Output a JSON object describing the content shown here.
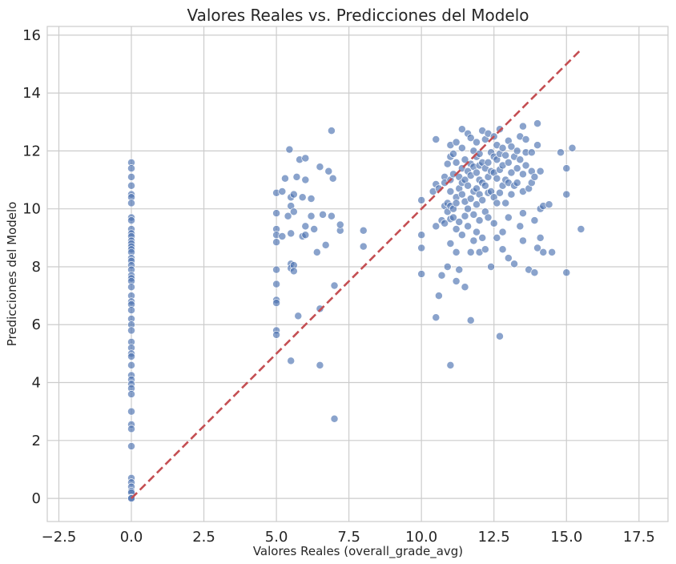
{
  "chart_data": {
    "type": "scatter",
    "title": "Valores Reales vs. Predicciones del Modelo",
    "xlabel": "Valores Reales (overall_grade_avg)",
    "ylabel": "Predicciones del Modelo",
    "xlim": [
      -2.9,
      18.5
    ],
    "ylim": [
      -0.8,
      16.3
    ],
    "xticks": [
      -2.5,
      0.0,
      2.5,
      5.0,
      7.5,
      10.0,
      12.5,
      15.0,
      17.5
    ],
    "xtick_labels": [
      "−2.5",
      "0.0",
      "2.5",
      "5.0",
      "7.5",
      "10.0",
      "12.5",
      "15.0",
      "17.5"
    ],
    "yticks": [
      0,
      2,
      4,
      6,
      8,
      10,
      12,
      14,
      16
    ],
    "ytick_labels": [
      "0",
      "2",
      "4",
      "6",
      "8",
      "10",
      "12",
      "14",
      "16"
    ],
    "grid": true,
    "point_color": "#4c72b0",
    "reference_line": {
      "x": [
        0,
        15.5
      ],
      "y": [
        0,
        15.5
      ],
      "color": "#c44e52",
      "style": "dashed"
    },
    "points": [
      [
        0,
        11.6
      ],
      [
        0,
        11.4
      ],
      [
        0,
        11.1
      ],
      [
        0,
        10.8
      ],
      [
        0,
        10.5
      ],
      [
        0,
        10.4
      ],
      [
        0,
        10.2
      ],
      [
        0,
        9.7
      ],
      [
        0,
        9.6
      ],
      [
        0,
        9.3
      ],
      [
        0,
        9.15
      ],
      [
        0,
        9.05
      ],
      [
        0,
        8.9
      ],
      [
        0,
        8.8
      ],
      [
        0,
        8.7
      ],
      [
        0,
        8.6
      ],
      [
        0,
        8.5
      ],
      [
        0,
        8.3
      ],
      [
        0,
        8.2
      ],
      [
        0,
        8.05
      ],
      [
        0,
        7.9
      ],
      [
        0,
        7.7
      ],
      [
        0,
        7.6
      ],
      [
        0,
        7.5
      ],
      [
        0,
        7.3
      ],
      [
        0,
        7.0
      ],
      [
        0,
        6.8
      ],
      [
        0,
        6.7
      ],
      [
        0,
        6.5
      ],
      [
        0,
        6.2
      ],
      [
        0,
        6.0
      ],
      [
        0,
        5.8
      ],
      [
        0,
        5.4
      ],
      [
        0,
        5.2
      ],
      [
        0,
        5.0
      ],
      [
        0,
        4.9
      ],
      [
        0,
        4.6
      ],
      [
        0,
        4.25
      ],
      [
        0,
        4.1
      ],
      [
        0,
        3.95
      ],
      [
        0,
        3.8
      ],
      [
        0,
        3.6
      ],
      [
        0,
        3.0
      ],
      [
        0,
        2.55
      ],
      [
        0,
        2.4
      ],
      [
        0,
        1.8
      ],
      [
        0,
        0.7
      ],
      [
        0,
        0.55
      ],
      [
        0,
        0.4
      ],
      [
        0,
        0.25
      ],
      [
        0,
        0.2
      ],
      [
        0,
        0.02
      ],
      [
        0,
        0.0
      ],
      [
        5.0,
        10.55
      ],
      [
        5.0,
        9.85
      ],
      [
        5.0,
        9.3
      ],
      [
        5.0,
        9.1
      ],
      [
        5.0,
        8.85
      ],
      [
        5.0,
        7.9
      ],
      [
        5.0,
        7.4
      ],
      [
        5.0,
        6.85
      ],
      [
        5.0,
        6.75
      ],
      [
        5.0,
        5.8
      ],
      [
        5.0,
        5.65
      ],
      [
        5.2,
        10.6
      ],
      [
        5.2,
        9.05
      ],
      [
        5.3,
        11.05
      ],
      [
        5.4,
        9.75
      ],
      [
        5.45,
        12.05
      ],
      [
        5.5,
        10.4
      ],
      [
        5.5,
        10.1
      ],
      [
        5.5,
        9.15
      ],
      [
        5.5,
        8.1
      ],
      [
        5.5,
        7.95
      ],
      [
        5.5,
        4.75
      ],
      [
        5.6,
        10.5
      ],
      [
        5.6,
        9.9
      ],
      [
        5.6,
        8.05
      ],
      [
        5.6,
        7.85
      ],
      [
        5.7,
        11.1
      ],
      [
        5.75,
        6.3
      ],
      [
        5.8,
        11.7
      ],
      [
        5.9,
        10.4
      ],
      [
        5.9,
        9.05
      ],
      [
        6.0,
        11.75
      ],
      [
        6.0,
        9.4
      ],
      [
        6.0,
        9.1
      ],
      [
        6.0,
        11.0
      ],
      [
        6.2,
        10.35
      ],
      [
        6.2,
        9.75
      ],
      [
        6.3,
        9.3
      ],
      [
        6.4,
        8.5
      ],
      [
        6.5,
        6.55
      ],
      [
        6.5,
        4.6
      ],
      [
        6.5,
        11.45
      ],
      [
        6.6,
        9.8
      ],
      [
        6.7,
        8.75
      ],
      [
        6.8,
        11.3
      ],
      [
        6.9,
        9.75
      ],
      [
        6.9,
        12.7
      ],
      [
        6.95,
        11.05
      ],
      [
        7.0,
        7.35
      ],
      [
        7.0,
        2.75
      ],
      [
        7.2,
        9.25
      ],
      [
        7.2,
        9.45
      ],
      [
        8.0,
        9.25
      ],
      [
        8.0,
        8.7
      ],
      [
        10.0,
        10.3
      ],
      [
        10.0,
        9.1
      ],
      [
        10.0,
        8.65
      ],
      [
        10.0,
        7.75
      ],
      [
        10.4,
        10.6
      ],
      [
        10.5,
        12.4
      ],
      [
        10.5,
        10.85
      ],
      [
        10.5,
        6.25
      ],
      [
        10.5,
        9.4
      ],
      [
        10.6,
        10.7
      ],
      [
        10.6,
        7.0
      ],
      [
        10.7,
        9.6
      ],
      [
        10.7,
        7.7
      ],
      [
        10.8,
        11.1
      ],
      [
        10.8,
        10.9
      ],
      [
        10.8,
        10.1
      ],
      [
        10.8,
        9.5
      ],
      [
        10.9,
        11.55
      ],
      [
        10.9,
        10.2
      ],
      [
        10.9,
        9.9
      ],
      [
        10.9,
        8.0
      ],
      [
        11.0,
        12.2
      ],
      [
        11.0,
        11.8
      ],
      [
        11.0,
        11.0
      ],
      [
        11.0,
        10.6
      ],
      [
        11.0,
        10.1
      ],
      [
        11.0,
        9.65
      ],
      [
        11.0,
        8.8
      ],
      [
        11.0,
        4.6
      ],
      [
        11.1,
        11.9
      ],
      [
        11.1,
        11.2
      ],
      [
        11.1,
        10.0
      ],
      [
        11.1,
        9.7
      ],
      [
        11.2,
        12.3
      ],
      [
        11.2,
        11.6
      ],
      [
        11.2,
        10.4
      ],
      [
        11.2,
        10.2
      ],
      [
        11.2,
        9.3
      ],
      [
        11.2,
        8.5
      ],
      [
        11.2,
        7.5
      ],
      [
        11.3,
        11.1
      ],
      [
        11.3,
        10.7
      ],
      [
        11.3,
        9.55
      ],
      [
        11.3,
        7.9
      ],
      [
        11.4,
        12.75
      ],
      [
        11.4,
        12.1
      ],
      [
        11.4,
        11.4
      ],
      [
        11.4,
        10.9
      ],
      [
        11.4,
        10.5
      ],
      [
        11.4,
        9.1
      ],
      [
        11.5,
        11.7
      ],
      [
        11.5,
        11.0
      ],
      [
        11.5,
        10.25
      ],
      [
        11.5,
        9.75
      ],
      [
        11.5,
        7.3
      ],
      [
        11.6,
        12.6
      ],
      [
        11.6,
        11.3
      ],
      [
        11.6,
        10.8
      ],
      [
        11.6,
        10.0
      ],
      [
        11.6,
        9.4
      ],
      [
        11.7,
        12.45
      ],
      [
        11.7,
        11.55
      ],
      [
        11.7,
        11.15
      ],
      [
        11.7,
        10.35
      ],
      [
        11.7,
        8.5
      ],
      [
        11.7,
        6.15
      ],
      [
        11.8,
        12.0
      ],
      [
        11.8,
        11.45
      ],
      [
        11.8,
        10.6
      ],
      [
        11.8,
        9.8
      ],
      [
        11.8,
        8.9
      ],
      [
        11.9,
        12.3
      ],
      [
        11.9,
        11.8
      ],
      [
        11.9,
        11.25
      ],
      [
        11.9,
        10.7
      ],
      [
        11.9,
        10.15
      ],
      [
        11.9,
        9.2
      ],
      [
        12.0,
        11.9
      ],
      [
        12.0,
        11.5
      ],
      [
        12.0,
        11.0
      ],
      [
        12.0,
        10.5
      ],
      [
        12.0,
        9.6
      ],
      [
        12.0,
        8.5
      ],
      [
        12.1,
        12.7
      ],
      [
        12.1,
        11.6
      ],
      [
        12.1,
        10.9
      ],
      [
        12.1,
        10.3
      ],
      [
        12.1,
        9.0
      ],
      [
        12.2,
        12.4
      ],
      [
        12.2,
        11.4
      ],
      [
        12.2,
        10.8
      ],
      [
        12.2,
        9.9
      ],
      [
        12.2,
        8.6
      ],
      [
        12.3,
        12.6
      ],
      [
        12.3,
        11.6
      ],
      [
        12.3,
        11.1
      ],
      [
        12.3,
        10.55
      ],
      [
        12.3,
        9.7
      ],
      [
        12.4,
        11.95
      ],
      [
        12.4,
        11.3
      ],
      [
        12.4,
        10.6
      ],
      [
        12.4,
        8.0
      ],
      [
        12.5,
        12.5
      ],
      [
        12.5,
        11.8
      ],
      [
        12.5,
        11.25
      ],
      [
        12.5,
        10.4
      ],
      [
        12.5,
        9.5
      ],
      [
        12.6,
        12.2
      ],
      [
        12.6,
        11.7
      ],
      [
        12.6,
        11.05
      ],
      [
        12.6,
        10.2
      ],
      [
        12.6,
        9.0
      ],
      [
        12.7,
        12.75
      ],
      [
        12.7,
        11.9
      ],
      [
        12.7,
        11.35
      ],
      [
        12.7,
        10.55
      ],
      [
        12.7,
        5.6
      ],
      [
        12.8,
        12.1
      ],
      [
        12.8,
        11.5
      ],
      [
        12.8,
        10.8
      ],
      [
        12.8,
        9.2
      ],
      [
        12.8,
        8.6
      ],
      [
        12.9,
        11.85
      ],
      [
        12.9,
        11.0
      ],
      [
        12.9,
        10.2
      ],
      [
        13.0,
        12.35
      ],
      [
        13.0,
        11.6
      ],
      [
        13.0,
        10.9
      ],
      [
        13.0,
        9.7
      ],
      [
        13.0,
        8.3
      ],
      [
        13.1,
        12.15
      ],
      [
        13.1,
        11.25
      ],
      [
        13.1,
        10.5
      ],
      [
        13.2,
        11.8
      ],
      [
        13.2,
        10.8
      ],
      [
        13.2,
        8.1
      ],
      [
        13.3,
        12.0
      ],
      [
        13.3,
        11.4
      ],
      [
        13.3,
        10.9
      ],
      [
        13.4,
        12.5
      ],
      [
        13.4,
        11.7
      ],
      [
        13.4,
        9.4
      ],
      [
        13.5,
        12.85
      ],
      [
        13.5,
        11.2
      ],
      [
        13.5,
        10.6
      ],
      [
        13.5,
        9.85
      ],
      [
        13.5,
        8.9
      ],
      [
        13.6,
        12.4
      ],
      [
        13.6,
        11.95
      ],
      [
        13.6,
        11.5
      ],
      [
        13.7,
        10.7
      ],
      [
        13.7,
        7.9
      ],
      [
        13.8,
        11.95
      ],
      [
        13.8,
        11.3
      ],
      [
        13.8,
        10.9
      ],
      [
        13.9,
        11.1
      ],
      [
        13.9,
        9.6
      ],
      [
        13.9,
        7.8
      ],
      [
        14.0,
        12.95
      ],
      [
        14.0,
        12.2
      ],
      [
        14.0,
        8.65
      ],
      [
        14.1,
        11.3
      ],
      [
        14.1,
        10.0
      ],
      [
        14.1,
        9.0
      ],
      [
        14.2,
        10.1
      ],
      [
        14.2,
        8.5
      ],
      [
        14.4,
        10.15
      ],
      [
        14.5,
        8.5
      ],
      [
        14.8,
        11.95
      ],
      [
        15.0,
        11.4
      ],
      [
        15.0,
        10.5
      ],
      [
        15.0,
        7.8
      ],
      [
        15.2,
        12.1
      ],
      [
        15.5,
        9.3
      ]
    ]
  }
}
